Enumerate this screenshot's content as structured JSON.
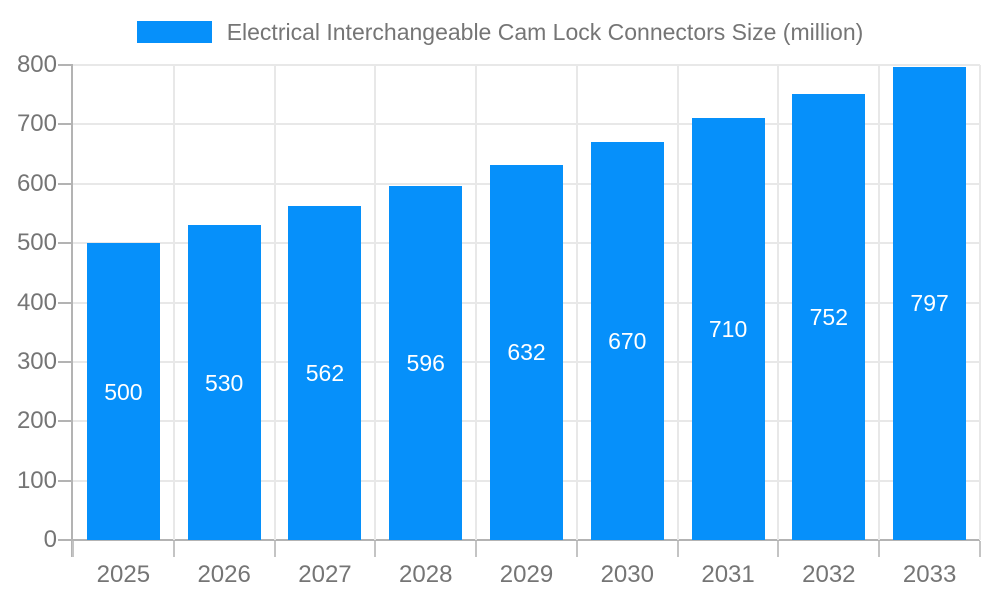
{
  "chart_data": {
    "type": "bar",
    "title": "Electrical Interchangeable Cam Lock Connectors Size (million)",
    "categories": [
      "2025",
      "2026",
      "2027",
      "2028",
      "2029",
      "2030",
      "2031",
      "2032",
      "2033"
    ],
    "values": [
      500,
      530,
      562,
      596,
      632,
      670,
      710,
      752,
      797
    ],
    "series": [
      {
        "name": "Electrical Interchangeable Cam Lock Connectors Size (million)",
        "values": [
          500,
          530,
          562,
          596,
          632,
          670,
          710,
          752,
          797
        ]
      }
    ],
    "xlabel": "",
    "ylabel": "",
    "ylim": [
      0,
      800
    ],
    "ytick_step": 100,
    "ytick_labels": [
      "0",
      "100",
      "200",
      "300",
      "400",
      "500",
      "600",
      "700",
      "800"
    ],
    "grid": true,
    "legend_position": "top",
    "bar_labels_inside": true,
    "colors": {
      "bar": "#0690fa",
      "bar_label_text": "#ffffff",
      "axis_text": "#757575",
      "grid_line": "#e8e8e8",
      "axis_line": "#b3b3b3",
      "tick_line": "#c4c4c4",
      "background": "#ffffff"
    }
  }
}
